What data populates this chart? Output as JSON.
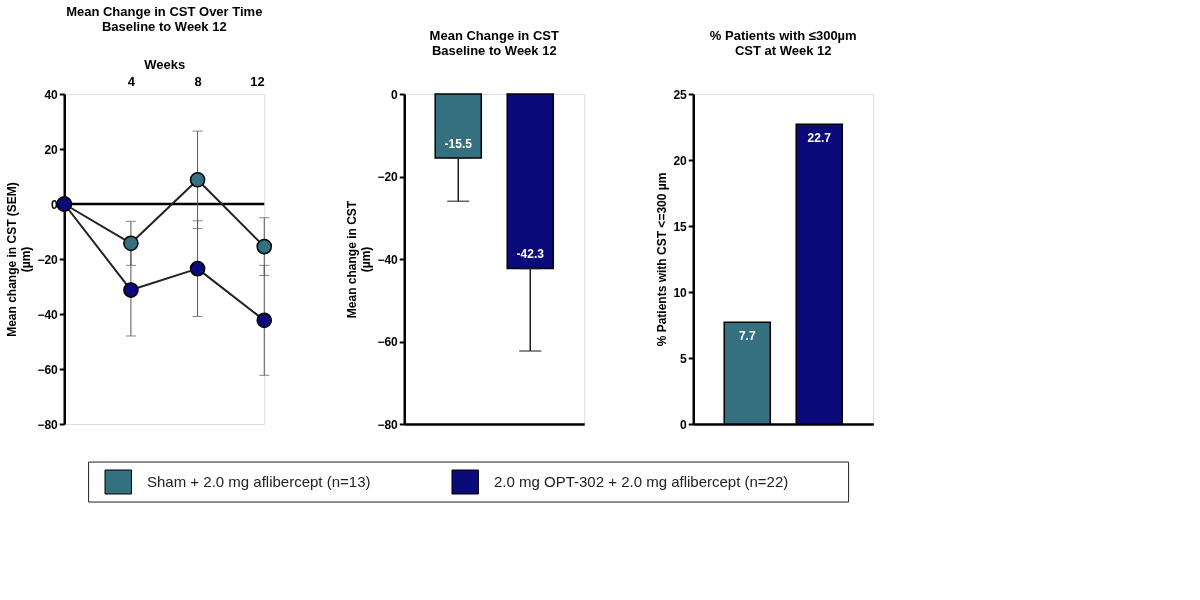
{
  "chart_data": [
    {
      "type": "line",
      "title": "Mean Change in CST Over Time",
      "subtitle": "Baseline to Week 12",
      "xlabel": "Weeks",
      "ylabel": "Mean change in CST (SEM) (µm)",
      "x": [
        0,
        4,
        8,
        12
      ],
      "xlim": [
        0,
        12
      ],
      "xticks": [
        4,
        8,
        12
      ],
      "ylim": [
        -80,
        40
      ],
      "yticks": [
        -80,
        -60,
        -40,
        -20,
        0,
        20,
        40
      ],
      "series": [
        {
          "name": "Sham + 2.0 mg aflibercept (n=13)",
          "color": "#34707f",
          "values": [
            0,
            -14.3,
            8.8,
            -15.5
          ],
          "errors": [
            null,
            8,
            17.7,
            10.5
          ]
        },
        {
          "name": "2.0 mg OPT-302 + 2.0 mg aflibercept (n=22)",
          "color": "#0a0a7a",
          "values": [
            0,
            -31.3,
            -23.5,
            -42.3
          ],
          "errors": [
            null,
            16.7,
            17.4,
            20
          ]
        }
      ],
      "ref_lines": [
        {
          "axis": "y",
          "value": 0,
          "label": null
        }
      ],
      "marker": "circle",
      "grid": false,
      "legend": "bottom"
    },
    {
      "type": "bar",
      "title": "Mean Change in CST",
      "subtitle": "Baseline to Week 12",
      "ylabel": "Mean change in CST (µm)",
      "categories": [
        null,
        null
      ],
      "values": [
        -15.5,
        -42.3
      ],
      "colors": [
        "#34707f",
        "#0a0a7a"
      ],
      "errors": [
        [
          -26,
          -15.5
        ],
        [
          -62.3,
          -42.3
        ]
      ],
      "ylim": [
        -80,
        0
      ],
      "yticks": [
        -80,
        -60,
        -40,
        -20,
        0
      ],
      "data_labels": true,
      "grid": false,
      "legend": false
    },
    {
      "type": "bar",
      "title": "% Patients with ≤300µm CST at Week 12",
      "ylabel": "% Patients with CST <=300 µm",
      "categories": [
        null,
        null
      ],
      "values": [
        7.7,
        22.7
      ],
      "colors": [
        "#34707f",
        "#0a0a7a"
      ],
      "ylim": [
        0,
        25
      ],
      "yticks": [
        0,
        5,
        10,
        15,
        20,
        25
      ],
      "data_labels": true,
      "grid": false,
      "legend": false
    }
  ]
}
